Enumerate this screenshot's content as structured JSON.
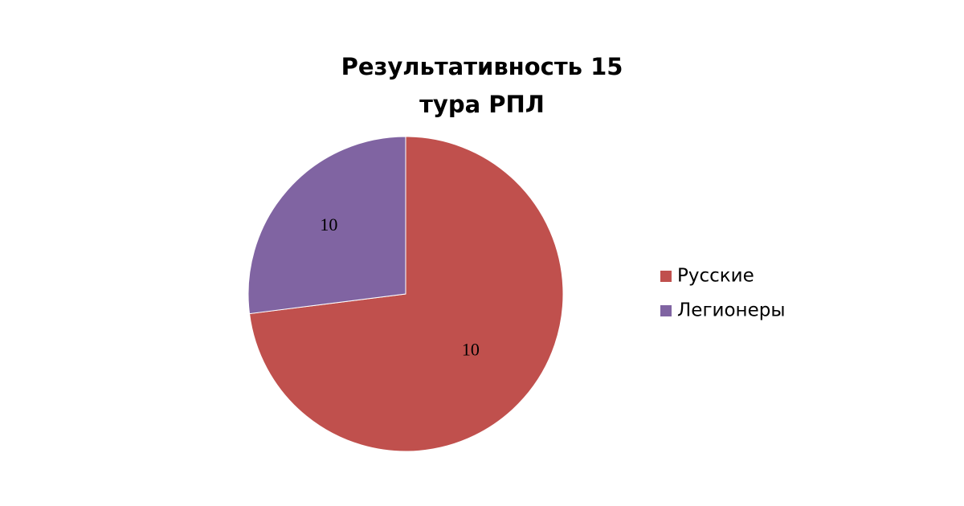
{
  "chart_data": {
    "type": "pie",
    "title": [
      "Результативность 15",
      "тура РПЛ"
    ],
    "categories": [
      "Русские",
      "Легионеры"
    ],
    "values": [
      73,
      27
    ],
    "colors": [
      "#c0504d",
      "#8064a2"
    ],
    "annotations": [
      "10",
      "10"
    ],
    "legend": "right"
  }
}
